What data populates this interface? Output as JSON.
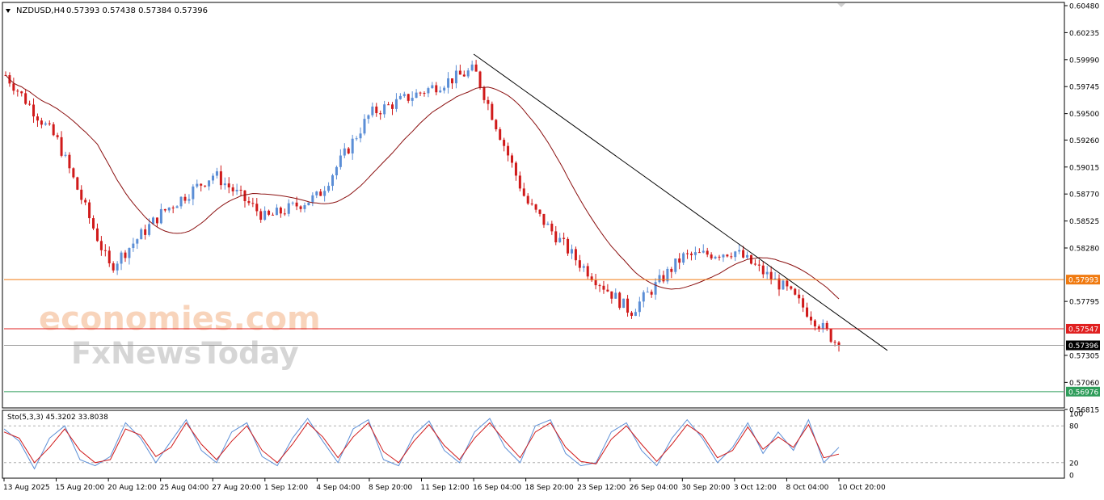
{
  "header": {
    "symbol": "NZDUSD,H4",
    "quote": "0.57393 0.57438 0.57384 0.57396"
  },
  "watermark": {
    "line1": "economies.com",
    "line2": "FxNewsToday"
  },
  "colors": {
    "background": "#ffffff",
    "bull": "#5b8ed6",
    "bear": "#d01a1a",
    "moving_average": "#8b1010",
    "trendline": "#000000",
    "orange_level": "#f07a10",
    "red_level": "#e02020",
    "green_level": "#2e9d5a",
    "current_level": "#9a9a9a",
    "stoch_main": "#5b8ed6",
    "stoch_signal": "#d01a1a"
  },
  "chart_data": [
    {
      "type": "candlestick",
      "symbol": "NZDUSD",
      "timeframe": "H4",
      "ylim": [
        0.5685,
        0.6048
      ],
      "y_ticks": [
        "0.60480",
        "0.60235",
        "0.59990",
        "0.59745",
        "0.59500",
        "0.59260",
        "0.59015",
        "0.58770",
        "0.58525",
        "0.58280",
        "0.57795",
        "0.57305",
        "0.57060",
        "0.56815"
      ],
      "x_ticks": [
        "13 Aug 2025",
        "15 Aug 20:00",
        "20 Aug 12:00",
        "25 Aug 04:00",
        "27 Aug 20:00",
        "1 Sep 12:00",
        "4 Sep 04:00",
        "8 Sep 20:00",
        "11 Sep 12:00",
        "16 Sep 04:00",
        "18 Sep 20:00",
        "23 Sep 12:00",
        "26 Sep 04:00",
        "30 Sep 20:00",
        "3 Oct 12:00",
        "8 Oct 04:00",
        "10 Oct 20:00"
      ],
      "approx_close_path": [
        {
          "date": "13 Aug 2025",
          "close": 0.5985
        },
        {
          "date": "15 Aug 20:00",
          "close": 0.5925
        },
        {
          "date": "20 Aug 12:00",
          "close": 0.581
        },
        {
          "date": "25 Aug 04:00",
          "close": 0.586
        },
        {
          "date": "27 Aug 20:00",
          "close": 0.5895
        },
        {
          "date": "1 Sep 12:00",
          "close": 0.5855
        },
        {
          "date": "4 Sep 04:00",
          "close": 0.5875
        },
        {
          "date": "8 Sep 20:00",
          "close": 0.595
        },
        {
          "date": "11 Sep 12:00",
          "close": 0.597
        },
        {
          "date": "16 Sep 04:00",
          "close": 0.599
        },
        {
          "date": "18 Sep 20:00",
          "close": 0.587
        },
        {
          "date": "23 Sep 12:00",
          "close": 0.5815
        },
        {
          "date": "26 Sep 04:00",
          "close": 0.577
        },
        {
          "date": "30 Sep 20:00",
          "close": 0.582
        },
        {
          "date": "3 Oct 12:00",
          "close": 0.5825
        },
        {
          "date": "8 Oct 04:00",
          "close": 0.579
        },
        {
          "date": "10 Oct 20:00",
          "close": 0.57396
        }
      ],
      "trendline": {
        "from": {
          "date": "16 Sep 04:00",
          "price": 0.6004
        },
        "to": {
          "date": "after 10 Oct 20:00",
          "price": 0.5735
        }
      },
      "horizontal_levels": [
        {
          "name": "orange",
          "label": "0.57993",
          "value": 0.57993
        },
        {
          "name": "red",
          "label": "0.57547",
          "value": 0.57547
        },
        {
          "name": "current",
          "label": "0.57396",
          "value": 0.57396
        },
        {
          "name": "green",
          "label": "0.56976",
          "value": 0.56976
        }
      ],
      "grid": false
    },
    {
      "type": "line",
      "title": "Sto(5,3,3) 45.3202 33.8038",
      "ylim": [
        0,
        100
      ],
      "y_ticks": [
        "100",
        "80",
        "20",
        "0"
      ],
      "levels": [
        80,
        20
      ],
      "series": [
        {
          "values": [
            75,
            55,
            10,
            60,
            80,
            25,
            15,
            30,
            85,
            60,
            20,
            55,
            90,
            40,
            20,
            70,
            85,
            30,
            15,
            60,
            92,
            55,
            20,
            75,
            90,
            25,
            15,
            65,
            88,
            40,
            20,
            70,
            92,
            45,
            20,
            80,
            90,
            35,
            15,
            20,
            70,
            85,
            40,
            15,
            60,
            90,
            60,
            20,
            45,
            85,
            35,
            70,
            40,
            90,
            20,
            45
          ]
        },
        {
          "values": [
            70,
            60,
            20,
            45,
            75,
            40,
            20,
            25,
            75,
            65,
            30,
            45,
            85,
            50,
            25,
            55,
            80,
            40,
            20,
            50,
            85,
            62,
            28,
            62,
            85,
            38,
            20,
            55,
            82,
            48,
            25,
            60,
            85,
            55,
            28,
            70,
            85,
            45,
            22,
            18,
            58,
            80,
            50,
            22,
            50,
            82,
            65,
            28,
            40,
            78,
            42,
            62,
            45,
            82,
            28,
            34
          ]
        }
      ]
    }
  ]
}
